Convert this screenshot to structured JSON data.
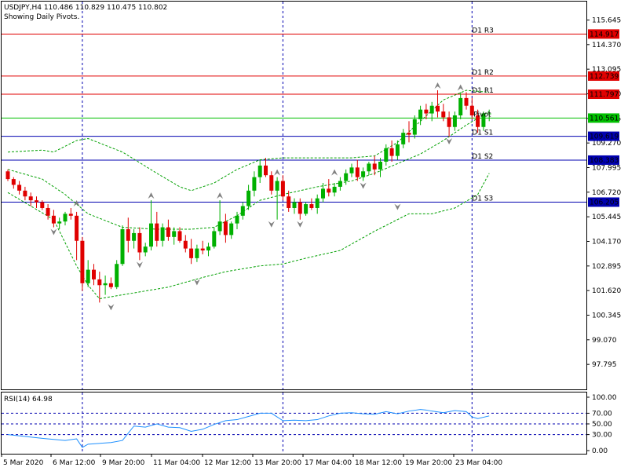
{
  "header": {
    "symbol_line": "USDJPY,H4  110.486 110.829 110.475 110.802",
    "indicator_note": "Showing Daily Pivots."
  },
  "colors": {
    "bull": "#00b000",
    "bear": "#e00000",
    "pivot_line": "#00c000",
    "resistance_line": "#e00000",
    "support_line": "#0000b0",
    "band": "#00a000",
    "rsi": "#1e90ff",
    "grid_v": "#0000b0",
    "fractal": "#808080"
  },
  "chart_data": [
    {
      "type": "candlestick",
      "title": "",
      "x_tick_labels": [
        "5 Mar 2020",
        "6 Mar 12:00",
        "9 Mar 20:00",
        "11 Mar 04:00",
        "12 Mar 12:00",
        "13 Mar 20:00",
        "17 Mar 04:00",
        "18 Mar 12:00",
        "19 Mar 20:00",
        "23 Mar 04:00"
      ],
      "y_tick_labels": [
        "115.645",
        "114.370",
        "113.095",
        "111.820",
        "110.545",
        "109.270",
        "107.995",
        "106.720",
        "105.445",
        "104.170",
        "102.895",
        "101.620",
        "100.345",
        "99.070",
        "97.795"
      ],
      "ylim": [
        96.5,
        116.6
      ],
      "candles": [
        [
          107.8,
          107.9,
          107.3,
          107.4
        ],
        [
          107.4,
          107.5,
          106.9,
          107.1
        ],
        [
          107.1,
          107.3,
          106.6,
          106.8
        ],
        [
          106.8,
          107.0,
          106.3,
          106.5
        ],
        [
          106.5,
          106.7,
          106.0,
          106.3
        ],
        [
          106.3,
          106.5,
          105.9,
          106.2
        ],
        [
          106.2,
          106.3,
          105.8,
          105.9
        ],
        [
          105.9,
          106.1,
          105.3,
          105.5
        ],
        [
          105.5,
          105.8,
          104.9,
          105.1
        ],
        [
          105.1,
          105.4,
          104.8,
          105.2
        ],
        [
          105.2,
          105.7,
          105.0,
          105.6
        ],
        [
          105.6,
          105.9,
          105.3,
          105.5
        ],
        [
          105.5,
          105.7,
          103.2,
          104.2
        ],
        [
          104.2,
          104.4,
          101.6,
          102.0
        ],
        [
          102.0,
          103.2,
          101.8,
          102.7
        ],
        [
          102.7,
          103.0,
          101.9,
          102.2
        ],
        [
          102.2,
          102.6,
          101.0,
          101.9
        ],
        [
          101.9,
          102.4,
          101.4,
          102.0
        ],
        [
          102.0,
          102.3,
          101.7,
          101.8
        ],
        [
          101.8,
          103.2,
          101.7,
          103.0
        ],
        [
          103.0,
          105.0,
          102.9,
          104.8
        ],
        [
          104.8,
          105.4,
          103.6,
          104.2
        ],
        [
          104.2,
          104.8,
          103.8,
          104.6
        ],
        [
          104.6,
          104.9,
          103.2,
          103.6
        ],
        [
          103.6,
          104.1,
          103.4,
          103.9
        ],
        [
          103.9,
          106.3,
          103.7,
          105.1
        ],
        [
          105.1,
          105.7,
          103.9,
          104.2
        ],
        [
          104.2,
          105.1,
          103.9,
          104.9
        ],
        [
          104.9,
          105.3,
          104.2,
          104.4
        ],
        [
          104.4,
          104.9,
          104.0,
          104.7
        ],
        [
          104.7,
          104.9,
          104.1,
          104.2
        ],
        [
          104.2,
          104.5,
          103.6,
          103.8
        ],
        [
          103.8,
          104.3,
          103.0,
          103.3
        ],
        [
          103.3,
          104.0,
          103.1,
          103.8
        ],
        [
          103.8,
          104.2,
          103.5,
          103.7
        ],
        [
          103.7,
          104.1,
          103.4,
          103.9
        ],
        [
          103.9,
          104.9,
          103.8,
          104.7
        ],
        [
          104.7,
          106.3,
          104.5,
          105.2
        ],
        [
          105.2,
          105.6,
          104.1,
          104.5
        ],
        [
          104.5,
          105.2,
          104.3,
          105.1
        ],
        [
          105.1,
          105.7,
          104.8,
          105.5
        ],
        [
          105.5,
          106.2,
          105.3,
          106.0
        ],
        [
          106.0,
          107.1,
          105.8,
          106.8
        ],
        [
          106.8,
          107.8,
          106.5,
          107.5
        ],
        [
          107.5,
          108.4,
          107.2,
          108.1
        ],
        [
          108.1,
          108.5,
          107.5,
          107.6
        ],
        [
          107.6,
          107.8,
          106.6,
          106.8
        ],
        [
          106.8,
          107.5,
          105.3,
          107.3
        ],
        [
          107.3,
          107.6,
          106.3,
          106.5
        ],
        [
          106.5,
          106.8,
          105.7,
          105.9
        ],
        [
          105.9,
          106.4,
          105.6,
          106.2
        ],
        [
          106.2,
          106.4,
          105.3,
          105.6
        ],
        [
          105.6,
          106.2,
          105.5,
          106.1
        ],
        [
          106.1,
          106.4,
          105.8,
          105.9
        ],
        [
          105.9,
          106.6,
          105.6,
          106.4
        ],
        [
          106.4,
          107.2,
          106.2,
          106.9
        ],
        [
          106.9,
          107.4,
          106.5,
          106.7
        ],
        [
          106.7,
          107.2,
          106.5,
          107.0
        ],
        [
          107.0,
          107.5,
          106.8,
          107.3
        ],
        [
          107.3,
          107.9,
          107.1,
          107.7
        ],
        [
          107.7,
          108.2,
          107.5,
          108.0
        ],
        [
          108.0,
          108.4,
          107.3,
          107.5
        ],
        [
          107.5,
          108.0,
          107.3,
          107.8
        ],
        [
          107.8,
          108.3,
          107.6,
          108.2
        ],
        [
          108.2,
          108.6,
          107.6,
          107.9
        ],
        [
          107.9,
          108.5,
          107.5,
          108.3
        ],
        [
          108.3,
          109.2,
          108.1,
          109.0
        ],
        [
          109.0,
          109.4,
          108.3,
          108.6
        ],
        [
          108.6,
          109.4,
          108.4,
          109.2
        ],
        [
          109.2,
          110.0,
          109.0,
          109.8
        ],
        [
          109.8,
          110.4,
          109.3,
          109.7
        ],
        [
          109.7,
          110.7,
          109.5,
          110.5
        ],
        [
          110.5,
          111.2,
          110.2,
          111.0
        ],
        [
          111.0,
          111.3,
          110.5,
          110.8
        ],
        [
          110.8,
          111.4,
          110.4,
          111.2
        ],
        [
          111.2,
          112.0,
          110.6,
          110.9
        ],
        [
          110.9,
          111.3,
          110.4,
          110.6
        ],
        [
          110.6,
          110.9,
          109.6,
          110.1
        ],
        [
          110.1,
          110.9,
          109.9,
          110.7
        ],
        [
          110.7,
          111.9,
          110.5,
          111.6
        ],
        [
          111.6,
          111.9,
          111.0,
          111.2
        ],
        [
          111.2,
          111.6,
          110.5,
          110.7
        ],
        [
          110.7,
          111.0,
          109.8,
          110.1
        ],
        [
          110.1,
          110.9,
          109.9,
          110.8
        ],
        [
          110.8,
          111.0,
          110.4,
          110.8
        ]
      ],
      "bands": {
        "upper": [
          [
            0,
            108.8
          ],
          [
            6,
            108.9
          ],
          [
            8,
            108.8
          ],
          [
            12,
            109.4
          ],
          [
            14,
            109.5
          ],
          [
            20,
            108.8
          ],
          [
            26,
            107.7
          ],
          [
            30,
            107.0
          ],
          [
            32,
            106.8
          ],
          [
            36,
            107.2
          ],
          [
            40,
            107.9
          ],
          [
            44,
            108.4
          ],
          [
            48,
            108.5
          ],
          [
            54,
            108.5
          ],
          [
            60,
            108.5
          ],
          [
            64,
            108.6
          ],
          [
            68,
            109.3
          ],
          [
            72,
            110.4
          ],
          [
            76,
            111.5
          ],
          [
            80,
            112.0
          ],
          [
            84,
            111.9
          ]
        ],
        "middle": [
          [
            0,
            107.9
          ],
          [
            6,
            107.4
          ],
          [
            10,
            106.6
          ],
          [
            14,
            105.6
          ],
          [
            20,
            104.9
          ],
          [
            26,
            104.8
          ],
          [
            32,
            104.8
          ],
          [
            36,
            104.9
          ],
          [
            40,
            105.5
          ],
          [
            44,
            106.3
          ],
          [
            48,
            106.6
          ],
          [
            54,
            107.0
          ],
          [
            60,
            107.3
          ],
          [
            64,
            107.7
          ],
          [
            68,
            108.2
          ],
          [
            72,
            108.7
          ],
          [
            76,
            109.4
          ],
          [
            80,
            110.2
          ],
          [
            84,
            110.9
          ]
        ],
        "lower": [
          [
            0,
            106.7
          ],
          [
            8,
            105.3
          ],
          [
            12,
            102.9
          ],
          [
            14,
            101.9
          ],
          [
            16,
            101.2
          ],
          [
            20,
            101.4
          ],
          [
            28,
            101.8
          ],
          [
            34,
            102.3
          ],
          [
            38,
            102.6
          ],
          [
            44,
            102.9
          ],
          [
            48,
            103.0
          ],
          [
            52,
            103.3
          ],
          [
            58,
            103.7
          ],
          [
            64,
            104.7
          ],
          [
            70,
            105.6
          ],
          [
            74,
            105.6
          ],
          [
            78,
            105.9
          ],
          [
            82,
            106.6
          ],
          [
            84,
            107.7
          ]
        ]
      },
      "pivots": [
        {
          "label": "D1 R3",
          "value": 114.917,
          "kind": "resistance"
        },
        {
          "label": "D1 R2",
          "value": 112.739,
          "kind": "resistance"
        },
        {
          "label": "D1 R1",
          "value": 111.797,
          "kind": "resistance"
        },
        {
          "label": "Pivot",
          "value": 110.561,
          "kind": "pivot"
        },
        {
          "label": "D1 S1",
          "value": 109.619,
          "kind": "support"
        },
        {
          "label": "D1 S2",
          "value": 108.383,
          "kind": "support"
        },
        {
          "label": "D1 S3",
          "value": 106.205,
          "kind": "support"
        }
      ],
      "fractals_up": [
        [
          12,
          105.9
        ],
        [
          25,
          106.3
        ],
        [
          37,
          106.3
        ],
        [
          47,
          107.5
        ],
        [
          57,
          107.5
        ],
        [
          75,
          112.0
        ],
        [
          79,
          111.9
        ]
      ],
      "fractals_down": [
        [
          8,
          104.9
        ],
        [
          18,
          101.0
        ],
        [
          23,
          103.2
        ],
        [
          33,
          102.3
        ],
        [
          46,
          105.3
        ],
        [
          51,
          105.3
        ],
        [
          62,
          107.3
        ],
        [
          68,
          106.2
        ],
        [
          77,
          109.6
        ]
      ]
    },
    {
      "type": "line",
      "title": "RSI(14) 64.98",
      "y_tick_labels": [
        "100.00",
        "70.00",
        "50.00",
        "30.00",
        "0.00"
      ],
      "levels": [
        70,
        50,
        30
      ],
      "ylim": [
        0,
        100
      ],
      "values": [
        [
          0,
          30
        ],
        [
          6,
          23
        ],
        [
          10,
          19
        ],
        [
          12,
          22
        ],
        [
          13,
          6
        ],
        [
          14,
          12
        ],
        [
          18,
          15
        ],
        [
          20,
          19
        ],
        [
          22,
          46
        ],
        [
          24,
          44
        ],
        [
          26,
          50
        ],
        [
          28,
          44
        ],
        [
          30,
          43
        ],
        [
          32,
          36
        ],
        [
          34,
          40
        ],
        [
          36,
          49
        ],
        [
          38,
          56
        ],
        [
          40,
          58
        ],
        [
          42,
          64
        ],
        [
          44,
          70
        ],
        [
          46,
          70
        ],
        [
          48,
          56
        ],
        [
          50,
          57
        ],
        [
          52,
          56
        ],
        [
          54,
          58
        ],
        [
          56,
          65
        ],
        [
          58,
          70
        ],
        [
          60,
          71
        ],
        [
          62,
          69
        ],
        [
          64,
          68
        ],
        [
          66,
          73
        ],
        [
          68,
          69
        ],
        [
          70,
          74
        ],
        [
          72,
          77
        ],
        [
          73,
          76
        ],
        [
          74,
          74
        ],
        [
          76,
          71
        ],
        [
          78,
          75
        ],
        [
          80,
          73
        ],
        [
          81,
          63
        ],
        [
          82,
          60
        ],
        [
          84,
          65
        ]
      ]
    }
  ],
  "price_labels": [
    {
      "value": 114.917,
      "text": "114.917",
      "bg": "#e00000",
      "fg": "#ffffff"
    },
    {
      "value": 112.739,
      "text": "112.739",
      "bg": "#e00000",
      "fg": "#ffffff"
    },
    {
      "value": 111.797,
      "text": "111.797",
      "bg": "#e00000",
      "fg": "#ffffff"
    },
    {
      "value": 110.561,
      "text": "110.561",
      "bg": "#00c000",
      "fg": "#ffffff"
    },
    {
      "value": 109.619,
      "text": "109.619",
      "bg": "#0000b0",
      "fg": "#ffffff"
    },
    {
      "value": 108.383,
      "text": "108.383",
      "bg": "#0000b0",
      "fg": "#ffffff"
    },
    {
      "value": 106.205,
      "text": "106.205",
      "bg": "#0000b0",
      "fg": "#ffffff"
    }
  ],
  "period_separator_candles": [
    13,
    48,
    81
  ]
}
